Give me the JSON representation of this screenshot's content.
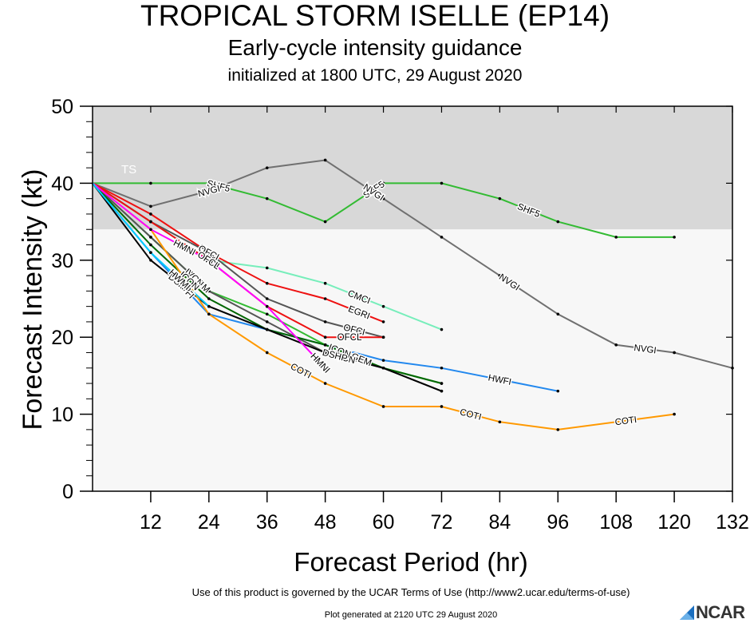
{
  "header": {
    "title": "TROPICAL STORM ISELLE (EP14)",
    "subtitle": "Early-cycle intensity guidance",
    "init": "initialized at 1800 UTC, 29 August 2020"
  },
  "footer": {
    "terms": "Use of this product is governed by the UCAR Terms of Use (http://www2.ucar.edu/terms-of-use)",
    "generated": "Plot generated at 2120 UTC   29 August 2020",
    "logo": "NCAR"
  },
  "chart_data": {
    "type": "line",
    "xlabel": "Forecast Period (hr)",
    "ylabel": "Forecast Intensity (kt)",
    "xlim": [
      0,
      132
    ],
    "ylim": [
      0,
      50
    ],
    "xticks": [
      12,
      24,
      36,
      48,
      60,
      72,
      84,
      96,
      108,
      120,
      132
    ],
    "yticks": [
      0,
      10,
      20,
      30,
      40,
      50
    ],
    "bands": [
      {
        "label": "TS",
        "from": 34,
        "to": 50,
        "color": "#d8d8d8"
      },
      {
        "label": "",
        "from": 0,
        "to": 34,
        "color": "#f7f7f7"
      }
    ],
    "series": [
      {
        "name": "SHF5",
        "color": "#33bb33",
        "x": [
          0,
          12,
          24,
          36,
          48,
          60,
          72,
          84,
          96,
          108,
          120
        ],
        "y": [
          40,
          40,
          40,
          38,
          35,
          40,
          40,
          38,
          35,
          33,
          33
        ],
        "labels": [
          26,
          58,
          90
        ]
      },
      {
        "name": "NVGI",
        "color": "#707070",
        "x": [
          0,
          12,
          24,
          36,
          48,
          60,
          72,
          84,
          96,
          108,
          120,
          132
        ],
        "y": [
          40,
          37,
          39,
          42,
          43,
          38,
          33,
          28,
          23,
          19,
          18,
          16
        ],
        "labels": [
          24,
          58,
          86,
          114
        ]
      },
      {
        "name": "CMCI",
        "color": "#77eebb",
        "x": [
          0,
          12,
          24,
          36,
          48,
          60,
          72
        ],
        "y": [
          40,
          35,
          30,
          29,
          27,
          24,
          21
        ],
        "labels": [
          24,
          55
        ]
      },
      {
        "name": "EGRI",
        "color": "#ee1111",
        "x": [
          0,
          12,
          24,
          36,
          48,
          60
        ],
        "y": [
          40,
          36,
          31,
          27,
          25,
          22
        ],
        "labels": [
          24,
          55
        ]
      },
      {
        "name": "OFCI",
        "color": "#555555",
        "x": [
          0,
          12,
          24,
          36,
          48,
          60
        ],
        "y": [
          40,
          35,
          31,
          25,
          22,
          20
        ],
        "labels": [
          24,
          54
        ]
      },
      {
        "name": "OFCL",
        "color": "#ee1111",
        "x": [
          0,
          12,
          24,
          36,
          48,
          60
        ],
        "y": [
          40,
          35,
          30,
          24,
          20,
          20
        ],
        "labels": [
          24,
          53
        ]
      },
      {
        "name": "HWFI",
        "color": "#2288ee",
        "x": [
          0,
          12,
          24,
          36,
          48,
          60,
          72,
          96
        ],
        "y": [
          40,
          31,
          23,
          21,
          19,
          17,
          16,
          13
        ],
        "labels": [
          19,
          84
        ]
      },
      {
        "name": "LGEM",
        "color": "#33bb33",
        "x": [
          0,
          12,
          24,
          36,
          48,
          60,
          72
        ],
        "y": [
          40,
          33,
          26,
          23,
          19,
          16,
          14
        ],
        "labels": [
          22,
          55
        ]
      },
      {
        "name": "IVCN",
        "color": "#555555",
        "x": [
          0,
          12,
          24,
          36,
          48,
          60,
          72
        ],
        "y": [
          40,
          33,
          26,
          22,
          18,
          16,
          13
        ],
        "labels": [
          21,
          52
        ]
      },
      {
        "name": "ICON",
        "color": "#006600",
        "x": [
          0,
          12,
          24,
          36,
          48,
          60,
          72
        ],
        "y": [
          40,
          32,
          25,
          21,
          19,
          16,
          14
        ],
        "labels": [
          20,
          51
        ]
      },
      {
        "name": "DSHP",
        "color": "#000000",
        "x": [
          0,
          12,
          24,
          36,
          48,
          60,
          72
        ],
        "y": [
          40,
          30,
          24,
          21,
          18,
          16,
          13
        ],
        "labels": [
          18,
          50
        ]
      },
      {
        "name": "COTI",
        "color": "#ff9900",
        "x": [
          0,
          12,
          24,
          36,
          48,
          60,
          72,
          84,
          96,
          120
        ],
        "y": [
          40,
          34,
          23,
          18,
          14,
          11,
          11,
          9,
          8,
          10
        ],
        "labels": [
          43,
          78,
          110
        ]
      },
      {
        "name": "HMNI",
        "color": "#ff00ff",
        "x": [
          0,
          12,
          24,
          36,
          48
        ],
        "y": [
          40,
          34,
          30,
          24,
          16
        ],
        "labels": [
          19,
          47
        ]
      },
      {
        "name": "HWMI",
        "color": "#00ccff",
        "x": [
          0,
          12,
          24
        ],
        "y": [
          40,
          31,
          24
        ],
        "labels": [
          18
        ]
      }
    ]
  }
}
